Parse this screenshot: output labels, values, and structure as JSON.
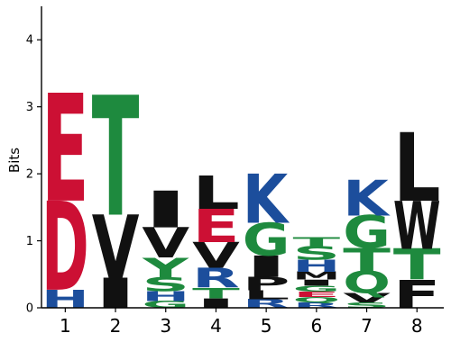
{
  "chart_data": {
    "type": "sequence-logo",
    "title": "",
    "xlabel": "",
    "ylabel": "Bits",
    "ylim": [
      0,
      4.5
    ],
    "yticks": [
      "0",
      "1",
      "2",
      "3",
      "4"
    ],
    "xticks": [
      "1",
      "2",
      "3",
      "4",
      "5",
      "6",
      "7",
      "8"
    ],
    "grid": false,
    "legend": "none",
    "colors": {
      "acidic": "#cc1034",
      "basic": "#1c4e9c",
      "hydrophobic": "#111111",
      "polar": "#1e8a3e"
    },
    "columns": [
      {
        "position": "1",
        "letters": [
          {
            "letter": "H",
            "height": 0.27,
            "color": "#1c4e9c"
          },
          {
            "letter": "D",
            "height": 1.33,
            "color": "#cc1034"
          },
          {
            "letter": "E",
            "height": 1.61,
            "color": "#cc1034"
          }
        ]
      },
      {
        "position": "2",
        "letters": [
          {
            "letter": "I",
            "height": 0.45,
            "color": "#111111"
          },
          {
            "letter": "V",
            "height": 0.94,
            "color": "#111111"
          },
          {
            "letter": "T",
            "height": 1.79,
            "color": "#1e8a3e"
          }
        ]
      },
      {
        "position": "3",
        "letters": [
          {
            "letter": "G",
            "height": 0.1,
            "color": "#1e8a3e"
          },
          {
            "letter": "H",
            "height": 0.15,
            "color": "#1c4e9c"
          },
          {
            "letter": "S",
            "height": 0.21,
            "color": "#1e8a3e"
          },
          {
            "letter": "Y",
            "height": 0.29,
            "color": "#1e8a3e"
          },
          {
            "letter": "V",
            "height": 0.45,
            "color": "#111111"
          },
          {
            "letter": "I",
            "height": 0.55,
            "color": "#111111"
          }
        ]
      },
      {
        "position": "4",
        "letters": [
          {
            "letter": "I",
            "height": 0.14,
            "color": "#111111"
          },
          {
            "letter": "T",
            "height": 0.16,
            "color": "#1e8a3e"
          },
          {
            "letter": "R",
            "height": 0.3,
            "color": "#1c4e9c"
          },
          {
            "letter": "V",
            "height": 0.38,
            "color": "#111111"
          },
          {
            "letter": "E",
            "height": 0.5,
            "color": "#cc1034"
          },
          {
            "letter": "L",
            "height": 0.5,
            "color": "#111111"
          }
        ]
      },
      {
        "position": "5",
        "letters": [
          {
            "letter": "R",
            "height": 0.13,
            "color": "#1c4e9c"
          },
          {
            "letter": "L",
            "height": 0.13,
            "color": "#111111"
          },
          {
            "letter": "P",
            "height": 0.2,
            "color": "#111111"
          },
          {
            "letter": "I",
            "height": 0.32,
            "color": "#111111"
          },
          {
            "letter": "G",
            "height": 0.49,
            "color": "#1e8a3e"
          },
          {
            "letter": "K",
            "height": 0.73,
            "color": "#1c4e9c"
          }
        ]
      },
      {
        "position": "6",
        "letters": [
          {
            "letter": "R",
            "height": 0.08,
            "color": "#1c4e9c"
          },
          {
            "letter": "Q",
            "height": 0.08,
            "color": "#1e8a3e"
          },
          {
            "letter": "E",
            "height": 0.08,
            "color": "#cc1034"
          },
          {
            "letter": "G",
            "height": 0.09,
            "color": "#1e8a3e"
          },
          {
            "letter": "I",
            "height": 0.09,
            "color": "#111111"
          },
          {
            "letter": "M",
            "height": 0.12,
            "color": "#111111"
          },
          {
            "letter": "H",
            "height": 0.18,
            "color": "#1c4e9c"
          },
          {
            "letter": "S",
            "height": 0.2,
            "color": "#1e8a3e"
          },
          {
            "letter": "T",
            "height": 0.13,
            "color": "#1e8a3e"
          }
        ]
      },
      {
        "position": "7",
        "letters": [
          {
            "letter": "S",
            "height": 0.08,
            "color": "#1e8a3e"
          },
          {
            "letter": "V",
            "height": 0.14,
            "color": "#111111"
          },
          {
            "letter": "Q",
            "height": 0.33,
            "color": "#1e8a3e"
          },
          {
            "letter": "T",
            "height": 0.34,
            "color": "#1e8a3e"
          },
          {
            "letter": "G",
            "height": 0.49,
            "color": "#1e8a3e"
          },
          {
            "letter": "K",
            "height": 0.53,
            "color": "#1c4e9c"
          }
        ]
      },
      {
        "position": "8",
        "letters": [
          {
            "letter": "F",
            "height": 0.42,
            "color": "#111111"
          },
          {
            "letter": "T",
            "height": 0.46,
            "color": "#1e8a3e"
          },
          {
            "letter": "W",
            "height": 0.72,
            "color": "#111111"
          },
          {
            "letter": "L",
            "height": 1.02,
            "color": "#111111"
          }
        ]
      }
    ]
  }
}
